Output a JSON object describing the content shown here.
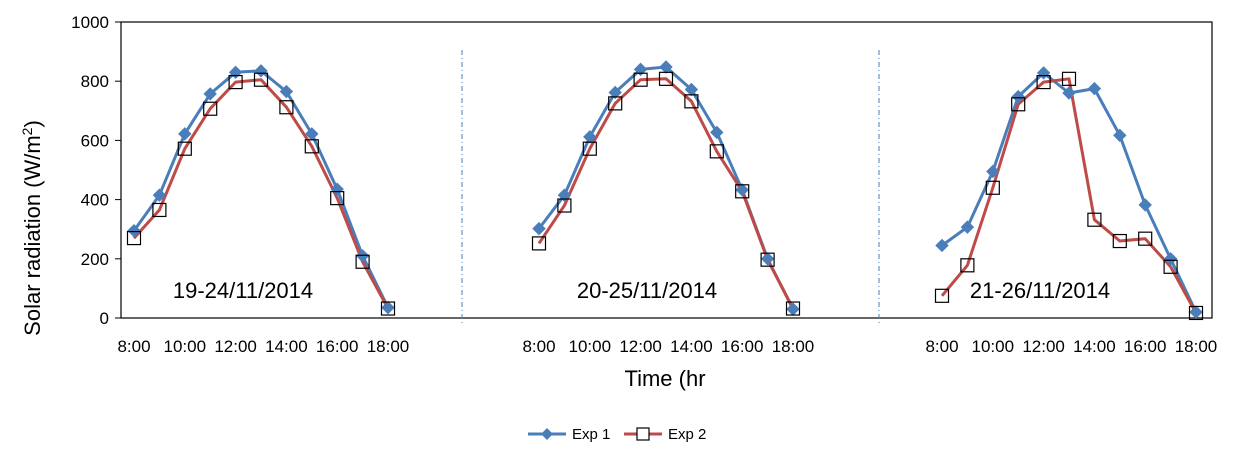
{
  "chart_data": {
    "type": "line",
    "ylabel": "Solar radiation (W/m",
    "ylabel_sup": "2",
    "ylabel_end": ")",
    "xlabel": "Time (hr",
    "ylim": [
      0,
      1000
    ],
    "y_ticks": [
      "0",
      "200",
      "400",
      "600",
      "800",
      "1000"
    ],
    "y_tick_values": [
      0,
      200,
      400,
      600,
      800,
      1000
    ],
    "grid": false,
    "legend_position": "bottom",
    "x_tick_labels": [
      "8:00",
      "10:00",
      "12:00",
      "14:00",
      "16:00",
      "18:00"
    ],
    "panels": [
      {
        "annotation": "19-24/11/2014",
        "x": [
          "8:00",
          "9:00",
          "10:00",
          "11:00",
          "12:00",
          "13:00",
          "14:00",
          "15:00",
          "16:00",
          "17:00",
          "18:00"
        ],
        "series": [
          {
            "name": "Exp 1",
            "values": [
              295,
              415,
              622,
              757,
              830,
              835,
              765,
              622,
              435,
              210,
              35
            ]
          },
          {
            "name": "Exp 2",
            "values": [
              270,
              365,
              572,
              707,
              797,
              805,
              712,
              580,
              405,
              190,
              32
            ]
          }
        ]
      },
      {
        "annotation": "20-25/11/2014",
        "x": [
          "8:00",
          "9:00",
          "10:00",
          "11:00",
          "12:00",
          "13:00",
          "14:00",
          "15:00",
          "16:00",
          "17:00",
          "18:00"
        ],
        "series": [
          {
            "name": "Exp 1",
            "values": [
              302,
              415,
              612,
              762,
              840,
              848,
              772,
              627,
              433,
              200,
              30
            ]
          },
          {
            "name": "Exp 2",
            "values": [
              252,
              380,
              572,
              725,
              805,
              808,
              732,
              563,
              428,
              197,
              32
            ]
          }
        ]
      },
      {
        "annotation": "21-26/11/2014",
        "x": [
          "8:00",
          "9:00",
          "10:00",
          "11:00",
          "12:00",
          "13:00",
          "14:00",
          "15:00",
          "16:00",
          "17:00",
          "18:00"
        ],
        "series": [
          {
            "name": "Exp 1",
            "values": [
              245,
              307,
              495,
              748,
              828,
              760,
              775,
              617,
              382,
              200,
              20
            ]
          },
          {
            "name": "Exp 2",
            "values": [
              75,
              178,
              440,
              722,
              797,
              808,
              332,
              260,
              268,
              173,
              17
            ]
          }
        ]
      }
    ],
    "series_colors": {
      "Exp 1": "#4a7ebb",
      "Exp 2": "#be4b48"
    },
    "legend": [
      "Exp 1",
      "Exp 2"
    ]
  }
}
